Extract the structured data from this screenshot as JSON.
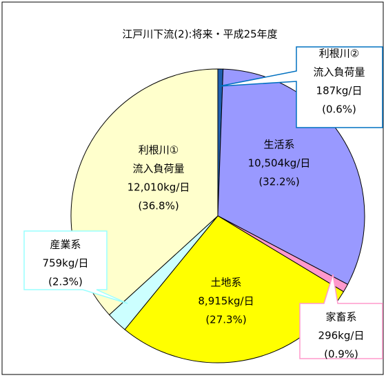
{
  "chart_data": {
    "type": "pie",
    "title": "江戸川下流(2):将来・平成25年度",
    "label_lines": [
      [
        "利根川②",
        "流入負荷量"
      ],
      [
        "生活系"
      ],
      [
        "家畜系"
      ],
      [
        "土地系"
      ],
      [
        "産業系"
      ],
      [
        "利根川①",
        "流入負荷量"
      ]
    ],
    "values": [
      187,
      10504,
      296,
      8915,
      759,
      12010
    ],
    "value_labels": [
      "187kg/日",
      "10,504kg/日",
      "296kg/日",
      "8,915kg/日",
      "759kg/日",
      "12,010kg/日"
    ],
    "shares": [
      0.6,
      32.2,
      0.9,
      27.3,
      2.3,
      36.8
    ],
    "share_labels": [
      "(0.6%)",
      "(32.2%)",
      "(0.9%)",
      "(27.3%)",
      "(2.3%)",
      "(36.8%)"
    ],
    "colors": [
      "#1f5fb0",
      "#9999ff",
      "#ff99cc",
      "#ffff00",
      "#ccffff",
      "#ffffcc"
    ]
  }
}
